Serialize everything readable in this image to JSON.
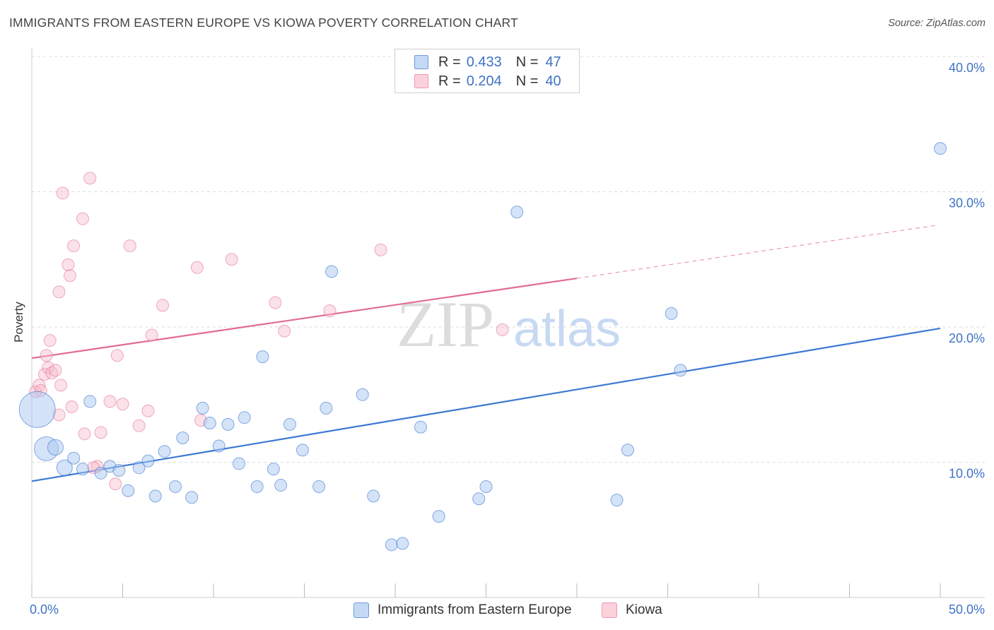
{
  "title": "IMMIGRANTS FROM EASTERN EUROPE VS KIOWA POVERTY CORRELATION CHART",
  "source": "Source: ZipAtlas.com",
  "watermark": {
    "zip": "ZIP",
    "atlas": "atlas"
  },
  "legend": {
    "r_label": "R =",
    "n_label": "N =",
    "series1": {
      "r": "0.433",
      "n": "47"
    },
    "series2": {
      "r": "0.204",
      "n": "40"
    }
  },
  "bottom_legend": {
    "series1": "Immigrants from Eastern Europe",
    "series2": "Kiowa"
  },
  "chart_data": {
    "type": "scatter",
    "title": "IMMIGRANTS FROM EASTERN EUROPE VS KIOWA POVERTY CORRELATION CHART",
    "xlabel": "",
    "ylabel": "Poverty",
    "xlim": [
      0,
      50
    ],
    "ylim": [
      0,
      40
    ],
    "x_tick_labels": [
      "0.0%",
      "50.0%"
    ],
    "y_ticks": [
      10,
      20,
      30,
      40
    ],
    "y_tick_labels": [
      "10.0%",
      "20.0%",
      "30.0%",
      "40.0%"
    ],
    "colors": {
      "series1": "#3c78d2",
      "series2": "#e26b91",
      "series1_fill": "#aac7ef",
      "series2_fill": "#f6bccd"
    },
    "series": [
      {
        "name": "Immigrants from Eastern Europe",
        "r": 0.433,
        "n": 47,
        "trend": {
          "x0": 0,
          "y0": 8.6,
          "x1": 50,
          "y1": 19.9
        },
        "points": [
          [
            0.3,
            13.9,
            3
          ],
          [
            0.8,
            11.0,
            2
          ],
          [
            1.3,
            11.1,
            1.3
          ],
          [
            1.8,
            9.6,
            1.3
          ],
          [
            2.3,
            10.3,
            1
          ],
          [
            2.8,
            9.5,
            1
          ],
          [
            3.2,
            14.5,
            1
          ],
          [
            3.8,
            9.2,
            1
          ],
          [
            4.3,
            9.7,
            1
          ],
          [
            4.8,
            9.4,
            1
          ],
          [
            5.3,
            7.9,
            1
          ],
          [
            5.9,
            9.6,
            1
          ],
          [
            6.4,
            10.1,
            1
          ],
          [
            6.8,
            7.5,
            1
          ],
          [
            7.3,
            10.8,
            1
          ],
          [
            7.9,
            8.2,
            1
          ],
          [
            8.3,
            11.8,
            1
          ],
          [
            8.8,
            7.4,
            1
          ],
          [
            9.4,
            14.0,
            1
          ],
          [
            9.8,
            12.9,
            1
          ],
          [
            10.3,
            11.2,
            1
          ],
          [
            10.8,
            12.8,
            1
          ],
          [
            11.4,
            9.9,
            1
          ],
          [
            11.7,
            13.3,
            1
          ],
          [
            12.4,
            8.2,
            1
          ],
          [
            12.7,
            17.8,
            1
          ],
          [
            13.3,
            9.5,
            1
          ],
          [
            13.7,
            8.3,
            1
          ],
          [
            14.2,
            12.8,
            1
          ],
          [
            14.9,
            10.9,
            1
          ],
          [
            15.8,
            8.2,
            1
          ],
          [
            16.2,
            14.0,
            1
          ],
          [
            16.5,
            24.1,
            1
          ],
          [
            18.2,
            15.0,
            1
          ],
          [
            18.8,
            7.5,
            1
          ],
          [
            19.8,
            3.9,
            1
          ],
          [
            20.4,
            4.0,
            1
          ],
          [
            21.4,
            12.6,
            1
          ],
          [
            22.4,
            6.0,
            1
          ],
          [
            24.6,
            7.3,
            1
          ],
          [
            25.0,
            8.2,
            1
          ],
          [
            26.7,
            28.5,
            1
          ],
          [
            32.2,
            7.2,
            1
          ],
          [
            32.8,
            10.9,
            1
          ],
          [
            35.2,
            21.0,
            1
          ],
          [
            35.7,
            16.8,
            1
          ],
          [
            50.0,
            33.2,
            1
          ]
        ]
      },
      {
        "name": "Kiowa",
        "r": 0.204,
        "n": 40,
        "trend": {
          "x0": 0,
          "y0": 17.7,
          "x1": 30,
          "y1": 23.6,
          "dashed_to": {
            "x": 49.7,
            "y": 27.5
          }
        },
        "points": [
          [
            0.2,
            15.2,
            1
          ],
          [
            0.4,
            15.7,
            1
          ],
          [
            0.5,
            15.3,
            1
          ],
          [
            0.7,
            16.5,
            1
          ],
          [
            0.8,
            17.9,
            1
          ],
          [
            0.9,
            17.0,
            1
          ],
          [
            1.0,
            19.0,
            1
          ],
          [
            1.1,
            16.6,
            1
          ],
          [
            1.3,
            16.8,
            1
          ],
          [
            1.5,
            13.5,
            1
          ],
          [
            1.6,
            15.7,
            1
          ],
          [
            1.5,
            22.6,
            1
          ],
          [
            1.7,
            29.9,
            1
          ],
          [
            2.0,
            24.6,
            1
          ],
          [
            2.1,
            23.8,
            1
          ],
          [
            2.2,
            14.1,
            1
          ],
          [
            2.3,
            26.0,
            1
          ],
          [
            2.8,
            28.0,
            1
          ],
          [
            2.9,
            12.1,
            1
          ],
          [
            3.2,
            31.0,
            1
          ],
          [
            3.6,
            9.7,
            1
          ],
          [
            3.8,
            12.2,
            1
          ],
          [
            4.3,
            14.5,
            1
          ],
          [
            4.6,
            8.4,
            1
          ],
          [
            4.7,
            17.9,
            1
          ],
          [
            5.0,
            14.3,
            1
          ],
          [
            5.4,
            26.0,
            1
          ],
          [
            5.9,
            12.7,
            1
          ],
          [
            6.4,
            13.8,
            1
          ],
          [
            6.6,
            19.4,
            1
          ],
          [
            7.2,
            21.6,
            1
          ],
          [
            9.1,
            24.4,
            1
          ],
          [
            9.3,
            13.1,
            1
          ],
          [
            11.0,
            25.0,
            1
          ],
          [
            13.4,
            21.8,
            1
          ],
          [
            13.9,
            19.7,
            1
          ],
          [
            16.4,
            21.2,
            1
          ],
          [
            19.2,
            25.7,
            1
          ],
          [
            25.9,
            19.8,
            1
          ],
          [
            3.4,
            9.6,
            1
          ]
        ]
      }
    ]
  }
}
